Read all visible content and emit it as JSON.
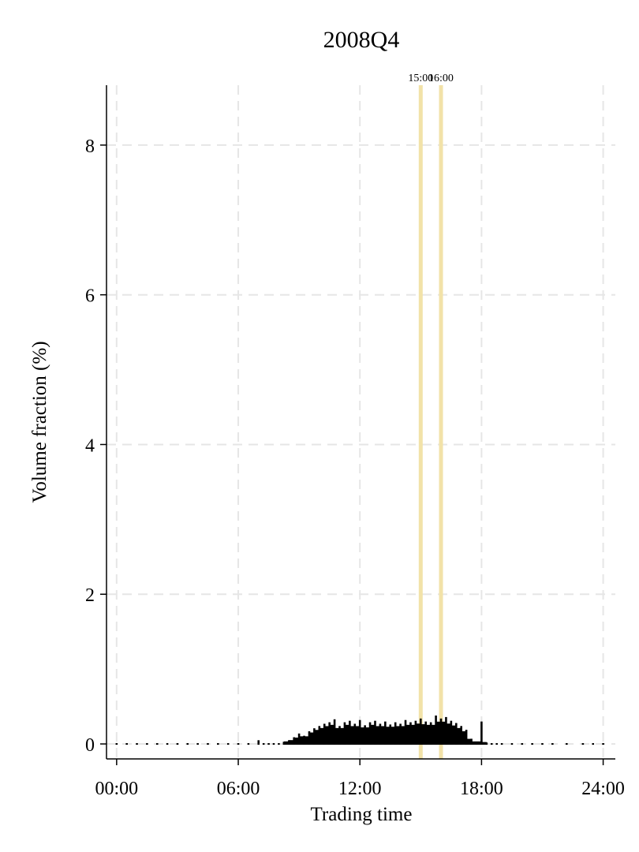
{
  "chart_data": {
    "type": "bar",
    "title": "2008Q4",
    "xlabel": "Trading time",
    "ylabel": "Volume fraction (%)",
    "x_unit": "hours",
    "xlim": [
      -0.5,
      24.6
    ],
    "ylim": [
      -0.2,
      8.8
    ],
    "x_ticks": [
      {
        "value": 0,
        "label": "00:00"
      },
      {
        "value": 6,
        "label": "06:00"
      },
      {
        "value": 12,
        "label": "12:00"
      },
      {
        "value": 18,
        "label": "18:00"
      },
      {
        "value": 24,
        "label": "24:00"
      }
    ],
    "y_ticks": [
      {
        "value": 0,
        "label": "0"
      },
      {
        "value": 2,
        "label": "2"
      },
      {
        "value": 4,
        "label": "4"
      },
      {
        "value": 6,
        "label": "6"
      },
      {
        "value": 8,
        "label": "8"
      }
    ],
    "grid": true,
    "reference_lines": [
      {
        "value": 15,
        "label": "15:00"
      },
      {
        "value": 16,
        "label": "16:00"
      }
    ],
    "colors": {
      "bars": "#000000",
      "reference": "#f2e2a8",
      "grid": "#e6e6e6"
    },
    "series": [
      {
        "bins": [
          [
            0.0,
            0.0
          ],
          [
            0.5,
            0.0
          ],
          [
            1.0,
            0.0
          ],
          [
            1.5,
            0.0
          ],
          [
            2.0,
            0.0
          ],
          [
            2.5,
            0.0
          ],
          [
            3.0,
            0.005
          ],
          [
            3.5,
            0.005
          ],
          [
            4.0,
            0.005
          ],
          [
            4.5,
            0.005
          ],
          [
            5.0,
            0.005
          ],
          [
            5.5,
            0.005
          ],
          [
            6.0,
            0.005
          ],
          [
            6.5,
            0.005
          ],
          [
            7.0,
            0.06
          ],
          [
            7.25,
            0.01
          ],
          [
            7.5,
            0.01
          ],
          [
            7.75,
            0.01
          ],
          [
            8.0,
            0.02
          ],
          [
            8.25,
            0.04
          ],
          [
            8.5,
            0.06
          ],
          [
            8.75,
            0.1
          ],
          [
            9.0,
            0.15
          ],
          [
            9.25,
            0.12
          ],
          [
            9.5,
            0.18
          ],
          [
            9.75,
            0.22
          ],
          [
            10.0,
            0.25
          ],
          [
            10.25,
            0.28
          ],
          [
            10.5,
            0.3
          ],
          [
            10.75,
            0.34
          ],
          [
            11.0,
            0.25
          ],
          [
            11.25,
            0.3
          ],
          [
            11.5,
            0.32
          ],
          [
            11.75,
            0.28
          ],
          [
            12.0,
            0.33
          ],
          [
            12.25,
            0.26
          ],
          [
            12.5,
            0.3
          ],
          [
            12.75,
            0.32
          ],
          [
            13.0,
            0.28
          ],
          [
            13.25,
            0.31
          ],
          [
            13.5,
            0.27
          ],
          [
            13.75,
            0.3
          ],
          [
            14.0,
            0.28
          ],
          [
            14.25,
            0.33
          ],
          [
            14.5,
            0.3
          ],
          [
            14.75,
            0.32
          ],
          [
            15.0,
            0.35
          ],
          [
            15.25,
            0.31
          ],
          [
            15.5,
            0.3
          ],
          [
            15.75,
            0.39
          ],
          [
            16.0,
            0.35
          ],
          [
            16.25,
            0.37
          ],
          [
            16.5,
            0.32
          ],
          [
            16.75,
            0.29
          ],
          [
            17.0,
            0.25
          ],
          [
            17.25,
            0.2
          ],
          [
            17.5,
            0.08
          ],
          [
            17.75,
            0.04
          ],
          [
            18.0,
            0.31
          ],
          [
            18.25,
            0.03
          ],
          [
            18.5,
            0.01
          ],
          [
            18.75,
            0.005
          ],
          [
            19.0,
            0.005
          ],
          [
            19.5,
            0.005
          ],
          [
            20.0,
            0.005
          ],
          [
            20.5,
            0.005
          ],
          [
            21.0,
            0.005
          ],
          [
            21.5,
            0.005
          ],
          [
            22.2,
            0.0
          ],
          [
            23.0,
            0.0
          ],
          [
            23.5,
            0.0
          ],
          [
            24.0,
            0.0
          ]
        ]
      }
    ]
  }
}
